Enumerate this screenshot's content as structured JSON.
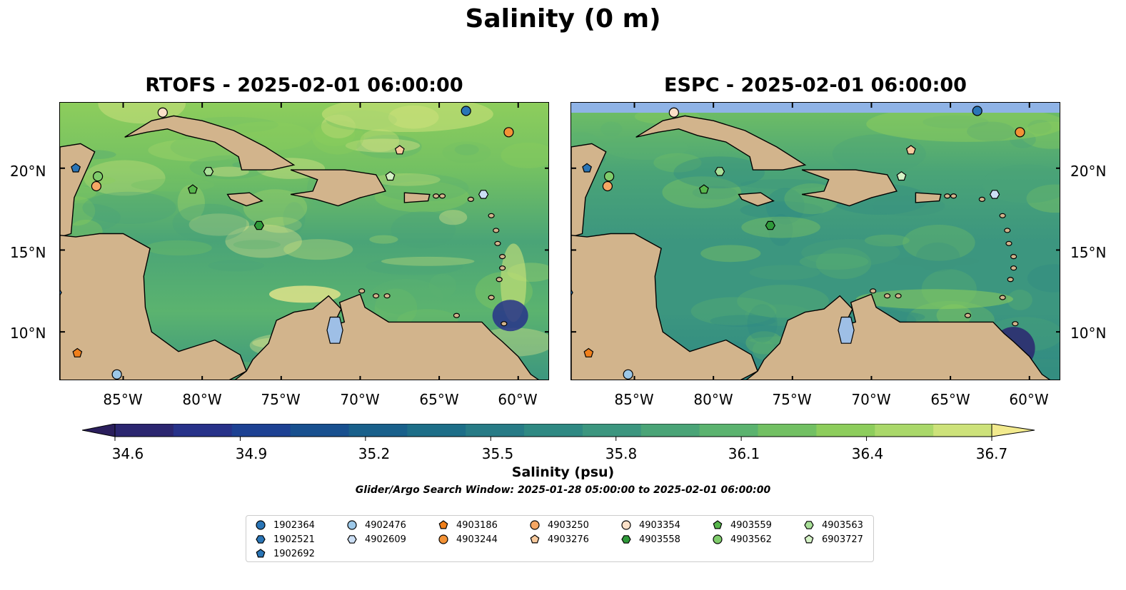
{
  "figure": {
    "title": "Salinity (0 m)",
    "panels": [
      {
        "title": "RTOFS - 2025-02-01 06:00:00",
        "model": "RTOFS"
      },
      {
        "title": "ESPC - 2025-02-01 06:00:00",
        "model": "ESPC"
      }
    ],
    "lat_ticks": [
      "20°N",
      "15°N",
      "10°N"
    ],
    "lon_ticks": [
      "85°W",
      "80°W",
      "75°W",
      "70°W",
      "65°W",
      "60°W"
    ],
    "colorbar": {
      "label": "Salinity (psu)",
      "ticks": [
        "34.6",
        "34.9",
        "35.2",
        "35.5",
        "35.8",
        "36.1",
        "36.4",
        "36.7"
      ],
      "min": 34.6,
      "max": 36.7,
      "extend": "both"
    },
    "search_window": "Glider/Argo Search Window: 2025-01-28 05:00:00 to 2025-02-01 06:00:00",
    "colors": {
      "land": "#d2b48c",
      "lake": "#9ebfe6",
      "espc_nodata": "#8fb3e6",
      "cmap": [
        "#2a1e5c",
        "#2b2670",
        "#273289",
        "#1d4193",
        "#18508f",
        "#19608b",
        "#1d6e88",
        "#277b86",
        "#2f8983",
        "#3c967f",
        "#4aa477",
        "#5bb36f",
        "#72c063",
        "#8dcd5c",
        "#aad86a",
        "#cde27a",
        "#f2ea8e"
      ]
    }
  },
  "chart_data": {
    "type": "map",
    "extent": {
      "lon": [
        -89,
        -58
      ],
      "lat": [
        7,
        24
      ]
    },
    "floats": [
      {
        "id": "1902364",
        "marker": "circle",
        "color": "#2a75b6",
        "lon": -63.3,
        "lat": 23.5
      },
      {
        "id": "1902521",
        "marker": "hexagon",
        "color": "#2a75b6",
        "lon": -89.2,
        "lat": 12.4
      },
      {
        "id": "1902692",
        "marker": "pentagon",
        "color": "#2a75b6",
        "lon": -88.0,
        "lat": 20.0
      },
      {
        "id": "4902476",
        "marker": "circle",
        "color": "#9cc8e8",
        "lon": -85.4,
        "lat": 7.4
      },
      {
        "id": "4902609",
        "marker": "hexagon",
        "color": "#ccdff5",
        "lon": -62.2,
        "lat": 18.4
      },
      {
        "id": "4903186",
        "marker": "pentagon",
        "color": "#f07f1a",
        "lon": -87.9,
        "lat": 8.7
      },
      {
        "id": "4903244",
        "marker": "circle",
        "color": "#f39236",
        "lon": -60.6,
        "lat": 22.2
      },
      {
        "id": "4903250",
        "marker": "circle",
        "color": "#f5a764",
        "lon": -86.7,
        "lat": 18.9
      },
      {
        "id": "4903276",
        "marker": "pentagon",
        "color": "#f8ca9d",
        "lon": -67.5,
        "lat": 21.1
      },
      {
        "id": "4903354",
        "marker": "circle",
        "color": "#fbe0c8",
        "lon": -82.5,
        "lat": 23.4
      },
      {
        "id": "4903558",
        "marker": "hexagon",
        "color": "#2f9a3a",
        "lon": -76.4,
        "lat": 16.5
      },
      {
        "id": "4903559",
        "marker": "pentagon",
        "color": "#57b64c",
        "lon": -80.6,
        "lat": 18.7
      },
      {
        "id": "4903562",
        "marker": "circle",
        "color": "#7fcc6b",
        "lon": -86.6,
        "lat": 19.5
      },
      {
        "id": "4903563",
        "marker": "hexagon",
        "color": "#a8df98",
        "lon": -79.6,
        "lat": 19.8
      },
      {
        "id": "6903727",
        "marker": "pentagon",
        "color": "#d5f2c6",
        "lon": -68.1,
        "lat": 19.5
      },
      {
        "id": "4903558b",
        "marker": "none",
        "color": "#000000",
        "lon": -76.4,
        "lat": 16.5
      }
    ]
  }
}
